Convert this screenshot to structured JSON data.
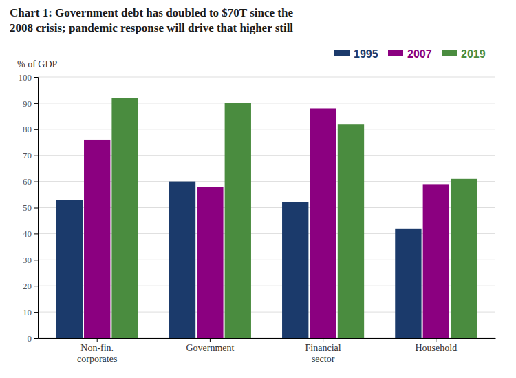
{
  "chart_data": {
    "type": "bar",
    "title": "Chart 1: Government debt has doubled to $70T since the\n2008 crisis; pandemic response will drive that higher still",
    "ylabel": "% of GDP",
    "categories": [
      "Non-fin.\ncorporates",
      "Government",
      "Financial\nsector",
      "Household"
    ],
    "series": [
      {
        "name": "1995",
        "color": "#1b3a6b",
        "values": [
          53,
          60,
          52,
          42
        ]
      },
      {
        "name": "2007",
        "color": "#8b0080",
        "values": [
          76,
          58,
          88,
          59
        ]
      },
      {
        "name": "2019",
        "color": "#4a8c3f",
        "values": [
          92,
          90,
          82,
          61
        ]
      }
    ],
    "ylim": [
      0,
      100
    ],
    "yticks": [
      0,
      10,
      20,
      30,
      40,
      50,
      60,
      70,
      80,
      90,
      100
    ],
    "grid": true,
    "legend": "upper right"
  }
}
